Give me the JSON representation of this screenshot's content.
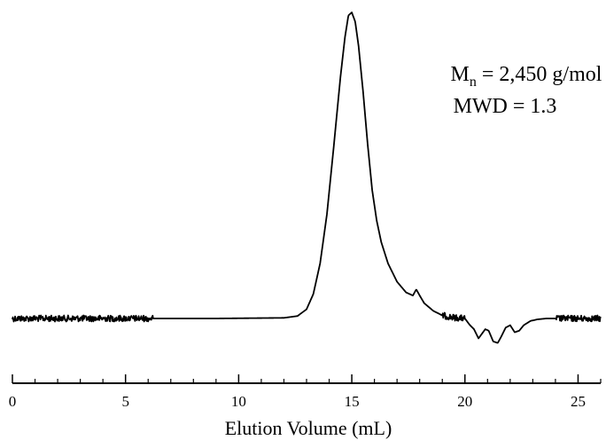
{
  "chart_data": {
    "type": "line",
    "title": "",
    "xlabel": "Elution Volume (mL)",
    "ylabel": "",
    "xlim": [
      0,
      26
    ],
    "x_ticks": [
      0,
      5,
      10,
      15,
      20,
      25
    ],
    "x_tick_labels": [
      "0",
      "5",
      "10",
      "15",
      "20",
      "25"
    ],
    "y_axis_visible": false,
    "grid": false,
    "annotations": {
      "mn_symbol": "M",
      "mn_subscript": "n",
      "mn_value": " = 2,450 g/mol",
      "mwd": "MWD = 1.3"
    },
    "series": [
      {
        "color": "#000000",
        "baseline": 0,
        "x": [
          0,
          3,
          6.2,
          9,
          12,
          12.6,
          13.0,
          13.3,
          13.6,
          13.9,
          14.2,
          14.5,
          14.7,
          14.85,
          15.0,
          15.15,
          15.3,
          15.5,
          15.7,
          15.9,
          16.1,
          16.3,
          16.6,
          17.0,
          17.4,
          17.7,
          17.85,
          18.0,
          18.2,
          18.6,
          19.0,
          19.5,
          20.0,
          20.2,
          20.4,
          20.6,
          20.75,
          20.9,
          21.05,
          21.25,
          21.45,
          21.6,
          21.8,
          22.0,
          22.2,
          22.4,
          22.6,
          22.9,
          23.2,
          23.6,
          24.2,
          25,
          26
        ],
        "y": [
          0,
          0,
          0,
          0,
          0.2,
          0.8,
          3,
          8,
          18,
          34,
          56,
          79,
          92,
          99,
          100,
          97,
          89,
          74,
          57,
          42,
          32,
          25,
          18,
          12,
          8.5,
          7.5,
          9.5,
          7.5,
          5,
          2.5,
          1,
          0.3,
          0,
          -2,
          -3.5,
          -6.5,
          -5,
          -3.5,
          -4,
          -7.5,
          -8,
          -6,
          -3,
          -2.2,
          -4.5,
          -4,
          -2.2,
          -0.8,
          -0.3,
          0,
          0,
          0,
          0
        ],
        "noisy_regions": [
          [
            0,
            6.2
          ],
          [
            19.0,
            20.0
          ],
          [
            24.0,
            26.0
          ]
        ]
      }
    ]
  }
}
